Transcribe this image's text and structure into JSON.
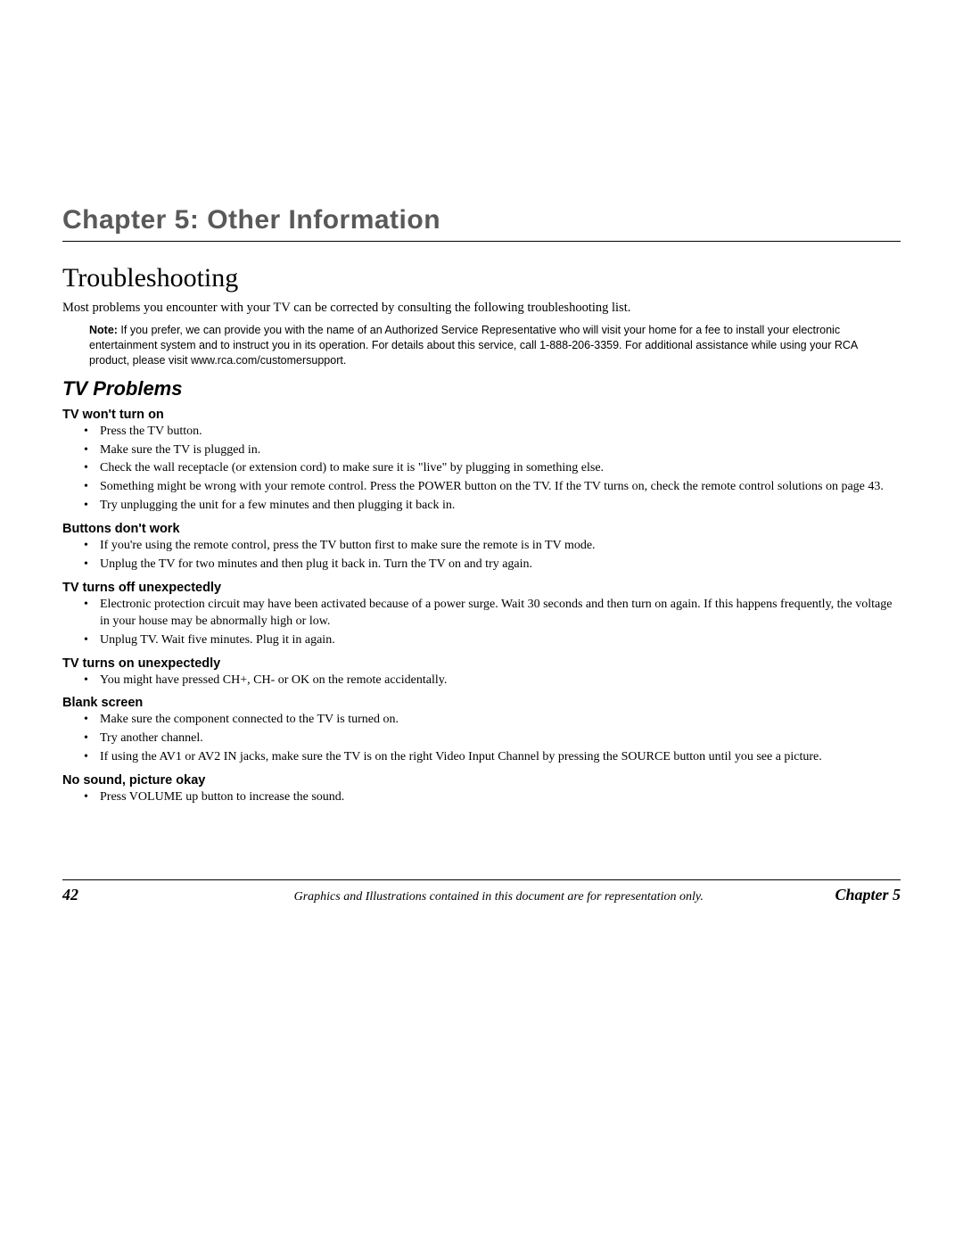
{
  "chapter_title": "Chapter 5: Other Information",
  "section_title": "Troubleshooting",
  "intro": "Most problems you encounter with your TV can be corrected by consulting the following troubleshooting list.",
  "note_label": "Note:",
  "note_text": " If you prefer, we can provide you with the name of an Authorized Service Representative who will visit your home for a fee to install your electronic entertainment system and to instruct you in its operation. For details about this service, call 1-888-206-3359. For additional assistance while using your RCA product, please visit www.rca.com/customersupport.",
  "subsection_title": "TV Problems",
  "problems": [
    {
      "title": "TV won't turn on",
      "items": [
        "Press the TV button.",
        "Make sure the TV is plugged in.",
        "Check the wall receptacle (or extension cord) to make sure it is \"live\" by plugging in something else.",
        "Something might be wrong with your remote control. Press the POWER button on the TV. If the TV turns on, check the remote control solutions on page 43.",
        "Try unplugging the unit for a few minutes and then plugging it back in."
      ]
    },
    {
      "title": "Buttons don't work",
      "items": [
        "If you're using the remote control, press the TV button first to make sure the remote is in TV mode.",
        "Unplug the TV for two minutes and then plug it back in. Turn the TV on and try again."
      ]
    },
    {
      "title": "TV turns off unexpectedly",
      "items": [
        "Electronic protection circuit may have been activated because of a power surge.  Wait 30 seconds and then turn on again.  If this happens frequently, the voltage in your house may be abnormally high or low.",
        "Unplug TV. Wait five minutes. Plug it in again."
      ]
    },
    {
      "title": "TV turns on unexpectedly",
      "items": [
        "You might have pressed CH+, CH- or OK on the remote accidentally."
      ]
    },
    {
      "title": "Blank screen",
      "items": [
        "Make sure the component connected to the TV is turned on.",
        "Try another channel.",
        "If using the AV1 or AV2  IN jacks, make sure the TV is on the right Video Input Channel by pressing the SOURCE button until you see a picture."
      ]
    },
    {
      "title": "No sound, picture okay",
      "items": [
        "Press VOLUME up button to increase the sound."
      ]
    }
  ],
  "footer": {
    "page_number": "42",
    "caption": "Graphics and Illustrations contained in this document are for representation only.",
    "chapter": "Chapter 5"
  }
}
